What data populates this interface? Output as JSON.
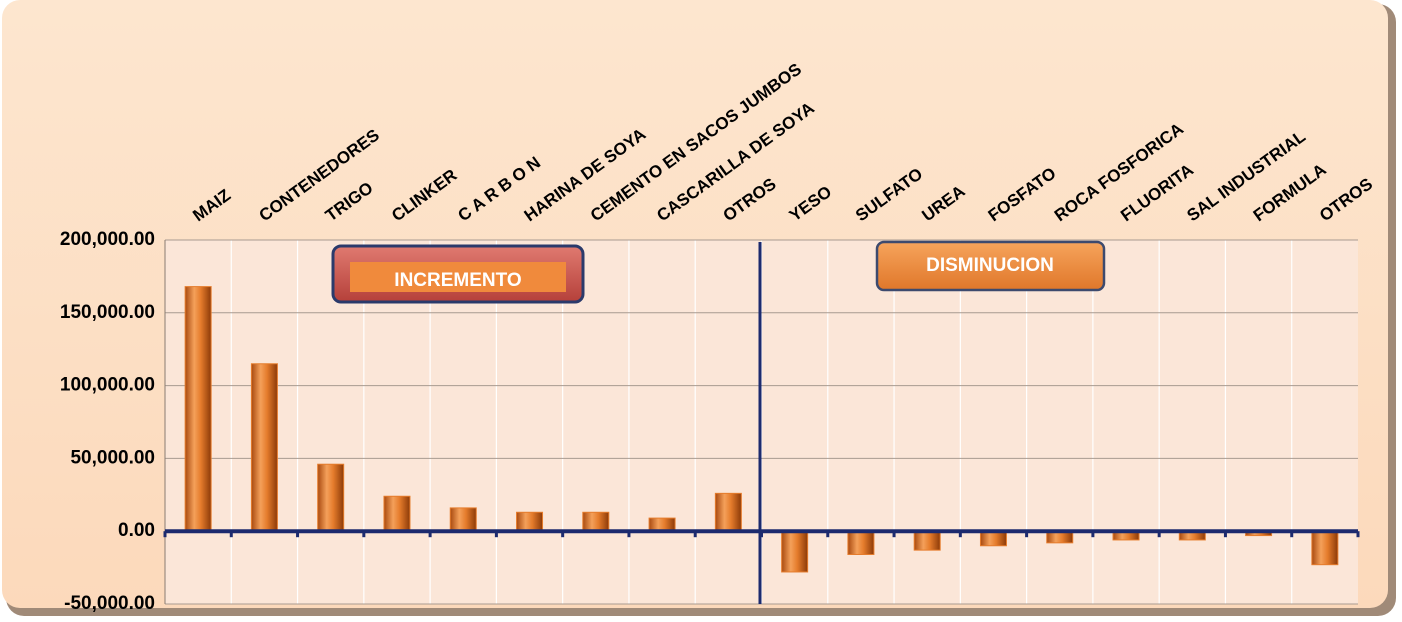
{
  "chart_data": {
    "type": "bar",
    "categories": [
      "MAIZ",
      "CONTENEDORES",
      "TRIGO",
      "CLINKER",
      "C A R B O N",
      "HARINA DE SOYA",
      "CEMENTO EN SACOS JUMBOS",
      "CASCARILLA DE SOYA",
      "OTROS",
      "YESO",
      "SULFATO",
      "UREA",
      "FOSFATO",
      "ROCA FOSFORICA",
      "FLUORITA",
      "SAL INDUSTRIAL",
      "FORMULA",
      "OTROS"
    ],
    "values": [
      168000,
      115000,
      46000,
      24000,
      16000,
      13000,
      13000,
      9000,
      26000,
      -28000,
      -16000,
      -13000,
      -10000,
      -8000,
      -6000,
      -6000,
      -3000,
      -23000
    ],
    "color": "#e57c2c",
    "ylim": [
      -50000,
      200000
    ],
    "yticks": [
      {
        "value": -50000,
        "label": "-50,000.00"
      },
      {
        "value": 0,
        "label": "0.00"
      },
      {
        "value": 50000,
        "label": "50,000.00"
      },
      {
        "value": 100000,
        "label": "100,000.00"
      },
      {
        "value": 150000,
        "label": "150,000.00"
      },
      {
        "value": 200000,
        "label": "200,000.00"
      }
    ],
    "grid": true,
    "annotations": [
      "INCREMENTO",
      "DISMINUCION"
    ]
  }
}
